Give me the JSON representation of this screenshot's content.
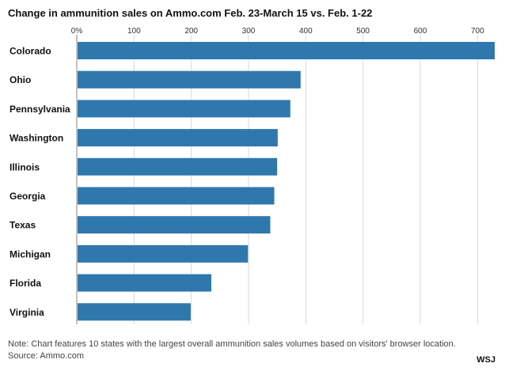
{
  "header": {
    "title": "Change in ammunition sales on Ammo.com Feb. 23-March 15 vs. Feb. 1-22"
  },
  "footer": {
    "note": "Note: Chart features 10 states with the largest overall ammunition sales volumes based on visitors' browser location.",
    "source": "Source: Ammo.com",
    "brand": "WSJ"
  },
  "colors": {
    "bar": "#2e78ae",
    "grid": "#d9d9d9",
    "axis": "#999999"
  },
  "chart_data": {
    "type": "bar",
    "orientation": "horizontal",
    "title": "Change in ammunition sales on Ammo.com Feb. 23-March 15 vs. Feb. 1-22",
    "xlabel": "",
    "ylabel": "",
    "xlim": [
      0,
      730
    ],
    "grid": true,
    "ticks": [
      0,
      100,
      200,
      300,
      400,
      500,
      600,
      700
    ],
    "tick_labels": [
      "0%",
      "100",
      "200",
      "300",
      "400",
      "500",
      "600",
      "700"
    ],
    "categories": [
      "Colorado",
      "Ohio",
      "Pennsylvania",
      "Washington",
      "Illinois",
      "Georgia",
      "Texas",
      "Michigan",
      "Florida",
      "Virginia"
    ],
    "values": [
      730,
      391,
      373,
      351,
      350,
      345,
      338,
      299,
      235,
      199
    ]
  }
}
